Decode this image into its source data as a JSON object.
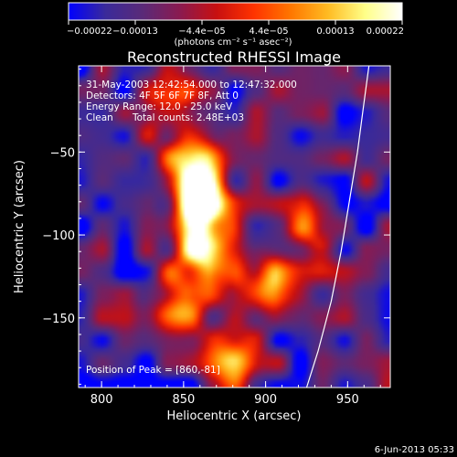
{
  "chart_data": {
    "type": "heatmap",
    "title": "Reconstructed RHESSI Image",
    "xlabel": "Heliocentric X (arcsec)",
    "ylabel": "Heliocentric Y (arcsec)",
    "xlim": [
      786,
      976
    ],
    "ylim": [
      -192,
      2
    ],
    "x_ticks": [
      800,
      850,
      900,
      950
    ],
    "y_ticks": [
      -50,
      -100,
      -150
    ],
    "x_tick_labels": [
      "800",
      "850",
      "900",
      "950"
    ],
    "y_tick_labels": [
      "−50",
      "−100",
      "−150"
    ],
    "colorbar": {
      "min": -0.00022,
      "max": 0.00022,
      "tick_labels": [
        "−0.00022",
        "−0.00013",
        "−4.4e−05",
        "4.4e−05",
        "0.00013",
        "0.00022"
      ],
      "units_label": "(photons cm⁻² s⁻¹ asec⁻²)",
      "colors": [
        "#0000ff",
        "#3a2a9a",
        "#5a2a78",
        "#8a1a50",
        "#c81010",
        "#ff3300",
        "#ff7700",
        "#ffbb22",
        "#ffff88",
        "#ffffff"
      ]
    },
    "annotations": {
      "time_range": "31-May-2003 12:42:54.000 to 12:47:32.000",
      "detectors": "Detectors: 4F 5F 6F 7F 8F, Att 0",
      "energy_range": "Energy Range: 12.0 - 25.0 keV",
      "algorithm": "Clean",
      "total_counts": "Total counts: 2.48E+03",
      "peak_position": "Position of Peak = [860,-81]"
    },
    "peak": [
      860,
      -81
    ],
    "limb_curve": [
      [
        925,
        -192
      ],
      [
        932,
        -170
      ],
      [
        940,
        -140
      ],
      [
        946,
        -110
      ],
      [
        951,
        -80
      ],
      [
        956,
        -50
      ],
      [
        960,
        -20
      ],
      [
        963,
        2
      ]
    ],
    "bright_sources": [
      {
        "x": 860,
        "y": -81,
        "value": 1.0
      },
      {
        "x": 855,
        "y": -55,
        "value": 0.7
      },
      {
        "x": 862,
        "y": -110,
        "value": 0.75
      },
      {
        "x": 848,
        "y": -140,
        "value": 0.55
      },
      {
        "x": 900,
        "y": -130,
        "value": 0.7
      },
      {
        "x": 880,
        "y": -175,
        "value": 0.55
      },
      {
        "x": 930,
        "y": -95,
        "value": 0.5
      },
      {
        "x": 840,
        "y": -20,
        "value": 0.5
      }
    ]
  },
  "footer": {
    "date": "6-Jun-2013 05:33"
  }
}
